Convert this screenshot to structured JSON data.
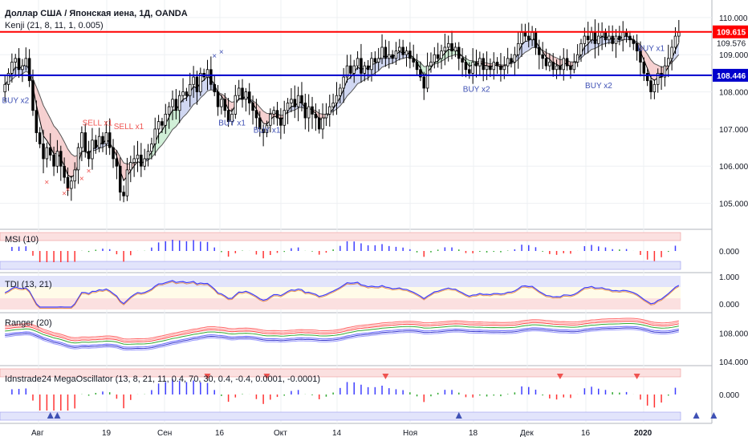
{
  "chart_data": {
    "type": "candlestick",
    "main": {
      "title": "Доллар США / Японская иена, 1Д, OANDA",
      "indicator": "Kenji (21, 8, 11, 1, 0.005)",
      "ylim": [
        104.3,
        110.3
      ],
      "yticks": [
        "110.000",
        "109.000",
        "108.000",
        "107.000",
        "106.000",
        "105.000"
      ],
      "resistance": {
        "value": 109.615,
        "label": "109.615",
        "color": "#ff0000"
      },
      "support": {
        "value": 108.446,
        "label": "108.446",
        "color": "#0000cc"
      },
      "last_price": {
        "value": 109.576,
        "label": "109.576"
      },
      "annotations": [
        {
          "text": "BUY x2",
          "x": 1,
          "y": 107.7,
          "type": "buy"
        },
        {
          "text": "SELL x1",
          "x": 24,
          "y": 107.1,
          "type": "sell"
        },
        {
          "text": "SELL x1",
          "x": 33,
          "y": 107.0,
          "type": "sell"
        },
        {
          "text": "BUY x1",
          "x": 63,
          "y": 107.1,
          "type": "buy"
        },
        {
          "text": "BUY x1",
          "x": 73,
          "y": 106.9,
          "type": "buy"
        },
        {
          "text": "BUY x2",
          "x": 133,
          "y": 108.0,
          "type": "buy"
        },
        {
          "text": "BUY x2",
          "x": 168,
          "y": 108.1,
          "type": "buy"
        },
        {
          "text": "BUY x1",
          "x": 183,
          "y": 109.1,
          "type": "buy"
        }
      ],
      "closes": [
        108.2,
        108.5,
        108.8,
        108.9,
        108.6,
        108.7,
        108.9,
        108.3,
        107.5,
        106.9,
        106.6,
        106.2,
        106.5,
        106.3,
        106.0,
        106.4,
        106.0,
        105.7,
        105.4,
        105.6,
        105.9,
        106.5,
        106.9,
        106.4,
        106.2,
        106.7,
        106.5,
        106.8,
        106.6,
        106.9,
        106.5,
        106.2,
        106.0,
        105.3,
        105.2,
        105.9,
        106.1,
        106.2,
        106.3,
        106.0,
        106.2,
        106.4,
        106.6,
        107.0,
        107.2,
        107.1,
        107.4,
        107.6,
        107.8,
        107.5,
        107.9,
        108.0,
        107.9,
        108.2,
        108.4,
        108.0,
        108.5,
        108.4,
        108.6,
        108.2,
        108.0,
        107.6,
        107.8,
        107.5,
        107.2,
        107.4,
        107.9,
        108.1,
        107.8,
        108.0,
        107.7,
        107.5,
        107.3,
        107.0,
        106.9,
        107.1,
        107.4,
        107.5,
        107.3,
        107.1,
        107.5,
        107.7,
        107.8,
        107.6,
        107.9,
        107.7,
        107.3,
        107.6,
        107.4,
        107.3,
        107.0,
        107.3,
        107.4,
        107.6,
        107.7,
        107.9,
        108.1,
        108.4,
        108.7,
        108.5,
        108.7,
        108.9,
        108.5,
        108.7,
        108.6,
        108.9,
        108.8,
        108.9,
        109.2,
        108.9,
        109.0,
        108.9,
        109.1,
        109.2,
        109.0,
        109.1,
        108.9,
        108.8,
        108.6,
        108.4,
        108.1,
        108.7,
        108.8,
        109.0,
        108.9,
        109.1,
        109.2,
        109.3,
        109.1,
        109.2,
        108.9,
        108.8,
        108.6,
        108.5,
        108.8,
        108.7,
        108.9,
        108.6,
        108.7,
        108.6,
        108.8,
        108.7,
        108.6,
        108.7,
        108.9,
        108.8,
        109.0,
        109.3,
        109.6,
        109.5,
        109.4,
        109.6,
        109.2,
        109.0,
        108.9,
        108.7,
        108.8,
        108.6,
        108.7,
        108.6,
        108.9,
        108.7,
        108.6,
        108.8,
        109.0,
        109.3,
        109.5,
        109.4,
        109.6,
        109.3,
        109.5,
        109.6,
        109.4,
        109.5,
        109.3,
        109.5,
        109.4,
        109.6,
        109.5,
        109.4,
        109.3,
        109.1,
        108.8,
        108.5,
        108.3,
        108.0,
        108.2,
        108.5,
        108.4,
        108.7,
        108.9,
        109.2,
        109.5,
        109.6
      ]
    },
    "x_labels": [
      "Авг",
      "19",
      "Сен",
      "16",
      "Окт",
      "14",
      "Ноя",
      "18",
      "Дек",
      "16",
      "2020"
    ],
    "panels": [
      {
        "name": "MSI (10)",
        "ylabel": "0.000",
        "type": "histogram"
      },
      {
        "name": "TDI (13, 21)",
        "yticks": [
          "1.000",
          "0.000"
        ],
        "type": "line"
      },
      {
        "name": "Ranger (20)",
        "yticks": [
          "108.000",
          "104.000"
        ],
        "type": "bands"
      },
      {
        "name": "Idnstrade24 MegaOscillator (13, 8, 21, 11, 0.4, 70, 30, 0.4, -0.4, 0.0001, -0.0001)",
        "ylabel": "0.000",
        "type": "histogram"
      }
    ],
    "colors": {
      "bull": "#ffffff",
      "bear": "#000000",
      "buy": "#3f51b5",
      "sell": "#ef5350",
      "hist_up": "#3d3dff",
      "hist_down": "#ff3333",
      "hist_flat": "#33aa33",
      "ema_fast": "#000000",
      "fill_up": "#c8d0f0",
      "fill_down": "#f5c8c8",
      "fill_mid": "#c8ecd0"
    }
  }
}
